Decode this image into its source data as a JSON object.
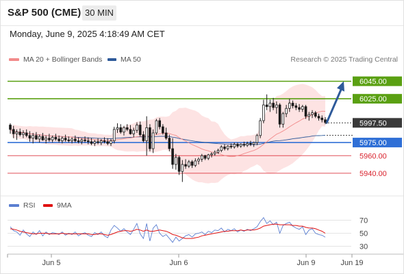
{
  "header": {
    "title": "S&P 500 (CME)",
    "timeframe": "30 MIN"
  },
  "timestamp": "Monday, June 9, 2025 4:18:49 AM CET",
  "legend": {
    "items": [
      {
        "label": "MA 20 + Bollinger Bands",
        "color": "#f28b8b"
      },
      {
        "label": "MA 50",
        "color": "#2e5a9a"
      }
    ],
    "credit": "Research © 2025 Trading Central"
  },
  "rsi_legend": {
    "items": [
      {
        "label": "RSI",
        "color": "#5b7fd1"
      },
      {
        "label": "9MA",
        "color": "#e01010"
      }
    ]
  },
  "chart_data": [
    {
      "type": "candlestick",
      "x_ticks": [
        "Jun 5",
        "Jun 6",
        "Jun 9",
        "Jun 19"
      ],
      "price_range": [
        5925,
        6058
      ],
      "last_price": {
        "label": "5997.50",
        "value": 5997.5
      },
      "levels": [
        {
          "label": "6045.00",
          "value": 6045,
          "kind": "resistance",
          "color": "#5aa012"
        },
        {
          "label": "6025.00",
          "value": 6025,
          "kind": "resistance",
          "color": "#5aa012"
        },
        {
          "label": "5975.00",
          "value": 5975,
          "kind": "pivot",
          "color": "#2f6fd6"
        },
        {
          "label": "5960.00",
          "value": 5960,
          "kind": "support",
          "color": "#d9232e"
        },
        {
          "label": "5940.00",
          "value": 5940,
          "kind": "support",
          "color": "#d9232e"
        }
      ],
      "projection": {
        "from": 5997.5,
        "to": 6045,
        "color": "#2e5a9a"
      },
      "ohlc": [
        [
          5995,
          5997,
          5985,
          5990
        ],
        [
          5990,
          5994,
          5980,
          5985
        ],
        [
          5985,
          5990,
          5978,
          5987
        ],
        [
          5987,
          5991,
          5982,
          5984
        ],
        [
          5984,
          5989,
          5980,
          5986
        ],
        [
          5986,
          5990,
          5981,
          5983
        ],
        [
          5983,
          5988,
          5976,
          5980
        ],
        [
          5980,
          5986,
          5974,
          5983
        ],
        [
          5983,
          5987,
          5978,
          5979
        ],
        [
          5979,
          5984,
          5975,
          5982
        ],
        [
          5982,
          5986,
          5977,
          5978
        ],
        [
          5978,
          5983,
          5974,
          5980
        ],
        [
          5980,
          5985,
          5976,
          5978
        ],
        [
          5978,
          5983,
          5975,
          5981
        ],
        [
          5981,
          5985,
          5977,
          5979
        ],
        [
          5979,
          5983,
          5975,
          5977
        ],
        [
          5977,
          5982,
          5974,
          5980
        ],
        [
          5980,
          5984,
          5976,
          5978
        ],
        [
          5978,
          5982,
          5975,
          5977
        ],
        [
          5977,
          5981,
          5974,
          5979
        ],
        [
          5979,
          5983,
          5975,
          5977
        ],
        [
          5977,
          5981,
          5974,
          5976
        ],
        [
          5976,
          5980,
          5973,
          5978
        ],
        [
          5978,
          5982,
          5975,
          5977
        ],
        [
          5977,
          5981,
          5973,
          5976
        ],
        [
          5976,
          5980,
          5972,
          5974
        ],
        [
          5974,
          5978,
          5971,
          5976
        ],
        [
          5976,
          5980,
          5973,
          5975
        ],
        [
          5975,
          5979,
          5972,
          5977
        ],
        [
          5977,
          5981,
          5974,
          5976
        ],
        [
          5976,
          5980,
          5972,
          5974
        ],
        [
          5974,
          5979,
          5971,
          5977
        ],
        [
          5977,
          5993,
          5974,
          5990
        ],
        [
          5990,
          5997,
          5986,
          5992
        ],
        [
          5992,
          5996,
          5985,
          5987
        ],
        [
          5987,
          5994,
          5983,
          5992
        ],
        [
          5992,
          5996,
          5988,
          5990
        ],
        [
          5990,
          5995,
          5984,
          5985
        ],
        [
          5985,
          5992,
          5981,
          5989
        ],
        [
          5989,
          5998,
          5986,
          5995
        ],
        [
          5995,
          5999,
          5982,
          5984
        ],
        [
          5984,
          5988,
          5975,
          5977
        ],
        [
          5977,
          6005,
          5960,
          5992
        ],
        [
          5992,
          5996,
          5965,
          5968
        ],
        [
          5968,
          5990,
          5963,
          5986
        ],
        [
          5986,
          6002,
          5984,
          6000
        ],
        [
          6000,
          6003,
          5990,
          5993
        ],
        [
          5993,
          5996,
          5984,
          5986
        ],
        [
          5986,
          5992,
          5978,
          5980
        ],
        [
          5980,
          5984,
          5965,
          5968
        ],
        [
          5968,
          5980,
          5945,
          5950
        ],
        [
          5950,
          5962,
          5944,
          5958
        ],
        [
          5958,
          5960,
          5938,
          5942
        ],
        [
          5942,
          5955,
          5930,
          5950
        ],
        [
          5950,
          5956,
          5945,
          5948
        ],
        [
          5948,
          5955,
          5946,
          5953
        ],
        [
          5953,
          5955,
          5946,
          5949
        ],
        [
          5949,
          5957,
          5947,
          5954
        ],
        [
          5954,
          5958,
          5950,
          5956
        ],
        [
          5956,
          5962,
          5953,
          5960
        ],
        [
          5960,
          5961,
          5955,
          5957
        ],
        [
          5957,
          5962,
          5955,
          5961
        ],
        [
          5961,
          5964,
          5958,
          5962
        ],
        [
          5962,
          5966,
          5960,
          5964
        ],
        [
          5964,
          5968,
          5962,
          5966
        ],
        [
          5966,
          5972,
          5964,
          5970
        ],
        [
          5970,
          5973,
          5966,
          5968
        ],
        [
          5968,
          5972,
          5966,
          5971
        ],
        [
          5971,
          5974,
          5968,
          5970
        ],
        [
          5970,
          5975,
          5968,
          5973
        ],
        [
          5973,
          5975,
          5969,
          5971
        ],
        [
          5971,
          5974,
          5969,
          5973
        ],
        [
          5973,
          5976,
          5970,
          5972
        ],
        [
          5972,
          5976,
          5970,
          5974
        ],
        [
          5974,
          5977,
          5971,
          5973
        ],
        [
          5973,
          5976,
          5970,
          5975
        ],
        [
          5975,
          5985,
          5972,
          5983
        ],
        [
          5983,
          6003,
          5980,
          6000
        ],
        [
          6000,
          6024,
          5997,
          6018
        ],
        [
          6018,
          6030,
          6012,
          6016
        ],
        [
          6016,
          6024,
          6010,
          6020
        ],
        [
          6020,
          6026,
          6012,
          6015
        ],
        [
          6015,
          6022,
          6008,
          6018
        ],
        [
          6018,
          6020,
          5992,
          5996
        ],
        [
          5996,
          6010,
          5992,
          6008
        ],
        [
          6008,
          6018,
          6004,
          6014
        ],
        [
          6014,
          6025,
          6010,
          6020
        ],
        [
          6020,
          6023,
          6014,
          6017
        ],
        [
          6017,
          6020,
          6012,
          6015
        ],
        [
          6015,
          6019,
          6010,
          6013
        ],
        [
          6013,
          6018,
          6010,
          6016
        ],
        [
          6016,
          6018,
          6002,
          6005
        ],
        [
          6005,
          6010,
          6000,
          6007
        ],
        [
          6007,
          6012,
          6003,
          6009
        ],
        [
          6009,
          6011,
          6003,
          6005
        ],
        [
          6005,
          6008,
          6000,
          6003
        ],
        [
          6003,
          6006,
          5998,
          6001
        ],
        [
          6001,
          6004,
          5996,
          5998
        ]
      ]
    },
    {
      "type": "line",
      "name": "RSI",
      "yticks": [
        70,
        50,
        30
      ],
      "ylim": [
        20,
        80
      ],
      "series": [
        {
          "name": "RSI",
          "values": [
            60,
            54,
            52,
            47,
            55,
            49,
            45,
            52,
            48,
            54,
            46,
            52,
            48,
            51,
            50,
            48,
            52,
            47,
            50,
            48,
            52,
            46,
            49,
            51,
            47,
            45,
            51,
            48,
            52,
            46,
            43,
            55,
            62,
            58,
            53,
            57,
            52,
            48,
            56,
            65,
            49,
            42,
            65,
            38,
            58,
            63,
            50,
            45,
            48,
            42,
            36,
            44,
            38,
            42,
            46,
            48,
            44,
            49,
            50,
            52,
            48,
            53,
            51,
            55,
            54,
            58,
            52,
            56,
            54,
            57,
            52,
            55,
            53,
            56,
            54,
            57,
            60,
            68,
            74,
            65,
            69,
            63,
            67,
            50,
            62,
            65,
            67,
            61,
            58,
            56,
            60,
            48,
            55,
            57,
            50,
            48,
            47,
            44
          ]
        },
        {
          "name": "9MA",
          "values": [
            57,
            56,
            55,
            53,
            52,
            51,
            50,
            49,
            49,
            50,
            50,
            50,
            49,
            49,
            49,
            49,
            50,
            49,
            49,
            49,
            49,
            49,
            49,
            49,
            49,
            48,
            48,
            49,
            49,
            48,
            47,
            48,
            50,
            52,
            53,
            54,
            54,
            53,
            54,
            56,
            55,
            53,
            55,
            53,
            53,
            54,
            55,
            54,
            53,
            51,
            48,
            47,
            45,
            43,
            42,
            42,
            42,
            43,
            44,
            46,
            47,
            48,
            49,
            50,
            51,
            52,
            53,
            53,
            54,
            54,
            54,
            55,
            54,
            55,
            55,
            55,
            56,
            58,
            61,
            62,
            63,
            64,
            64,
            63,
            63,
            63,
            63,
            62,
            62,
            61,
            61,
            59,
            58,
            58,
            57,
            55,
            53,
            50
          ]
        }
      ]
    }
  ]
}
